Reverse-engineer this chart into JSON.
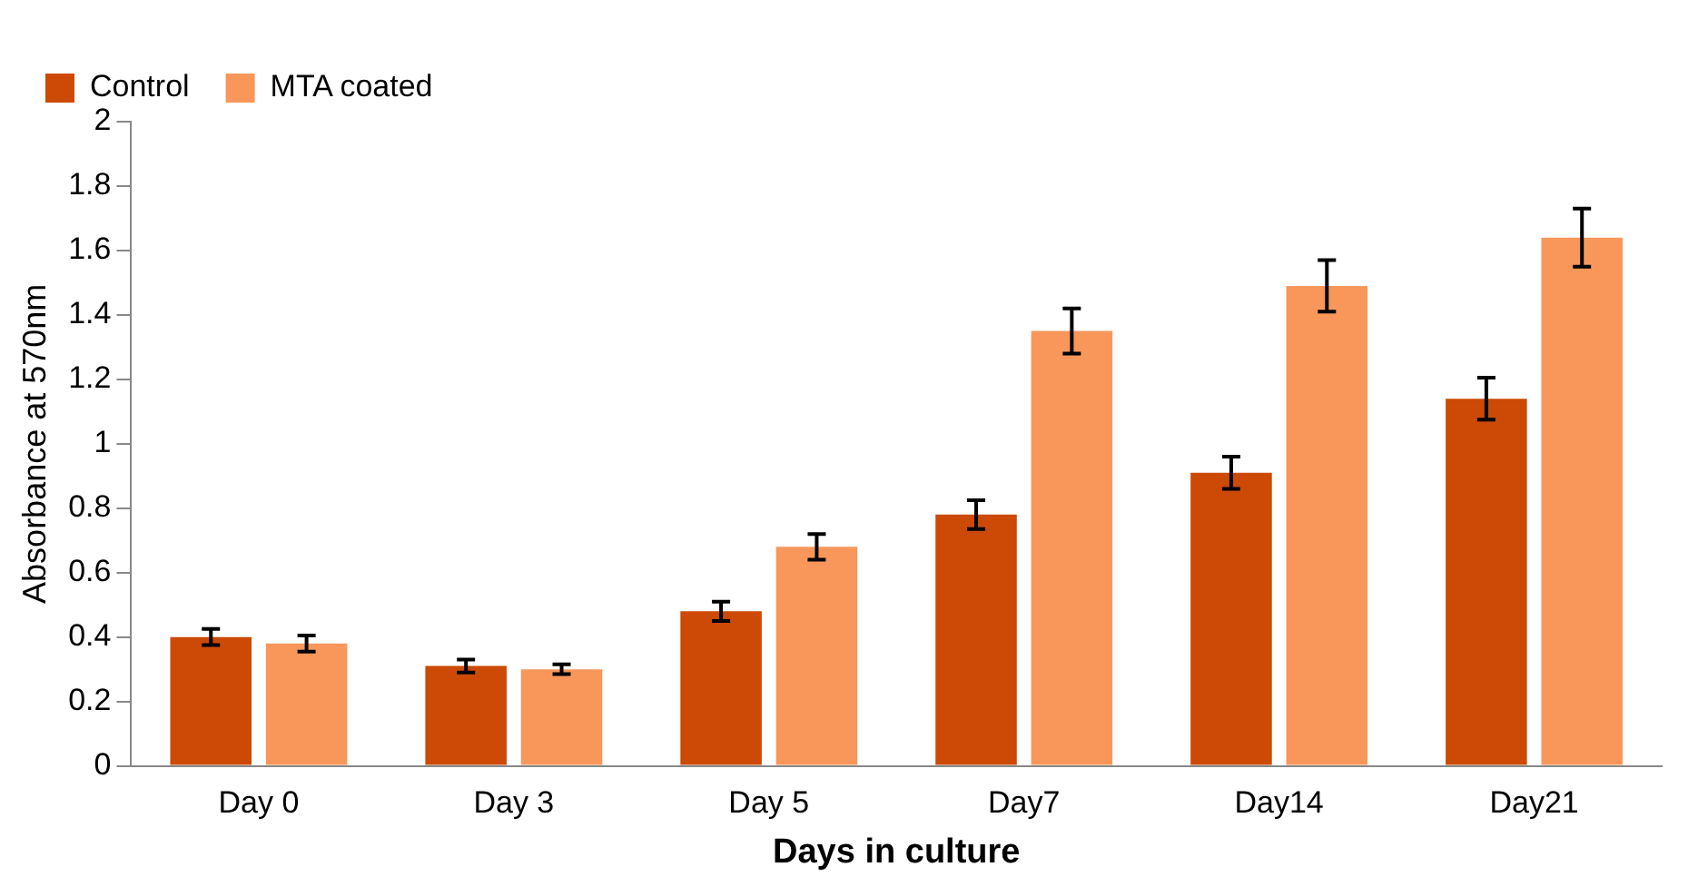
{
  "chart_data": {
    "type": "bar",
    "xlabel": "Days in culture",
    "ylabel": "Absorbance at 570nm",
    "categories": [
      "Day 0",
      "Day 3",
      "Day 5",
      "Day7",
      "Day14",
      "Day21"
    ],
    "series": [
      {
        "name": "Control",
        "color": "#cc4a05",
        "values": [
          0.4,
          0.31,
          0.48,
          0.78,
          0.91,
          1.14
        ],
        "errors": [
          0.025,
          0.02,
          0.03,
          0.045,
          0.05,
          0.065
        ]
      },
      {
        "name": "MTA coated",
        "color": "#f9975b",
        "values": [
          0.38,
          0.3,
          0.68,
          1.35,
          1.49,
          1.64
        ],
        "errors": [
          0.025,
          0.015,
          0.04,
          0.07,
          0.08,
          0.09
        ]
      }
    ],
    "ylim": [
      0,
      2
    ],
    "yticks": [
      0,
      0.2,
      0.4,
      0.6,
      0.8,
      1,
      1.2,
      1.4,
      1.6,
      1.8,
      2
    ],
    "grid": false,
    "legend": "top left"
  }
}
